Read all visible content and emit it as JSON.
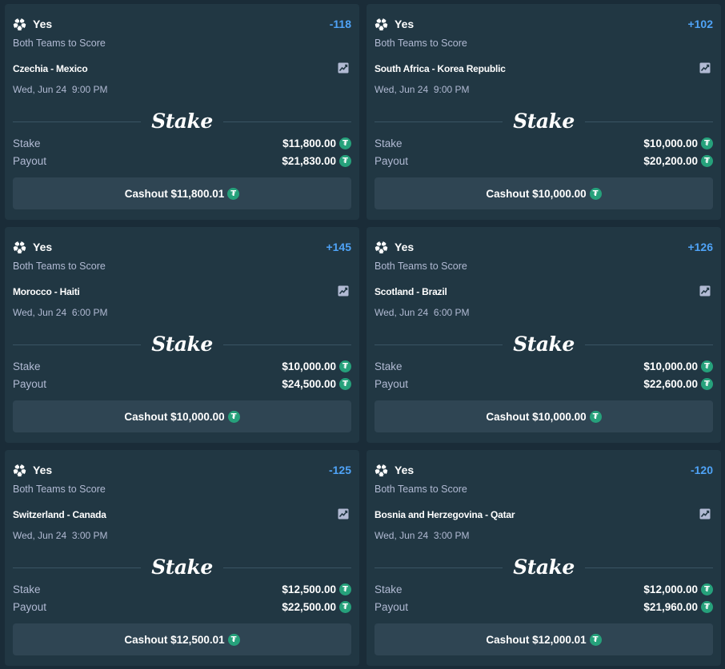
{
  "currency_icon": "tether-coin-icon",
  "brand_color": "#26a17b",
  "bets": [
    {
      "pick": "Yes",
      "odds": "-118",
      "market": "Both Teams to Score",
      "match": "Czechia - Mexico",
      "date": "Wed, Jun 24  9:00 PM",
      "brand": "Stake",
      "stake_label": "Stake",
      "stake_value": "$11,800.00",
      "payout_label": "Payout",
      "payout_value": "$21,830.00",
      "cashout_label": "Cashout $11,800.01"
    },
    {
      "pick": "Yes",
      "odds": "+102",
      "market": "Both Teams to Score",
      "match": "South Africa - Korea Republic",
      "date": "Wed, Jun 24  9:00 PM",
      "brand": "Stake",
      "stake_label": "Stake",
      "stake_value": "$10,000.00",
      "payout_label": "Payout",
      "payout_value": "$20,200.00",
      "cashout_label": "Cashout $10,000.00"
    },
    {
      "pick": "Yes",
      "odds": "+145",
      "market": "Both Teams to Score",
      "match": "Morocco - Haiti",
      "date": "Wed, Jun 24  6:00 PM",
      "brand": "Stake",
      "stake_label": "Stake",
      "stake_value": "$10,000.00",
      "payout_label": "Payout",
      "payout_value": "$24,500.00",
      "cashout_label": "Cashout $10,000.00"
    },
    {
      "pick": "Yes",
      "odds": "+126",
      "market": "Both Teams to Score",
      "match": "Scotland - Brazil",
      "date": "Wed, Jun 24  6:00 PM",
      "brand": "Stake",
      "stake_label": "Stake",
      "stake_value": "$10,000.00",
      "payout_label": "Payout",
      "payout_value": "$22,600.00",
      "cashout_label": "Cashout $10,000.00"
    },
    {
      "pick": "Yes",
      "odds": "-125",
      "market": "Both Teams to Score",
      "match": "Switzerland - Canada",
      "date": "Wed, Jun 24  3:00 PM",
      "brand": "Stake",
      "stake_label": "Stake",
      "stake_value": "$12,500.00",
      "payout_label": "Payout",
      "payout_value": "$22,500.00",
      "cashout_label": "Cashout $12,500.01"
    },
    {
      "pick": "Yes",
      "odds": "-120",
      "market": "Both Teams to Score",
      "match": "Bosnia and Herzegovina - Qatar",
      "date": "Wed, Jun 24  3:00 PM",
      "brand": "Stake",
      "stake_label": "Stake",
      "stake_value": "$12,000.00",
      "payout_label": "Payout",
      "payout_value": "$21,960.00",
      "cashout_label": "Cashout $12,000.01"
    }
  ]
}
